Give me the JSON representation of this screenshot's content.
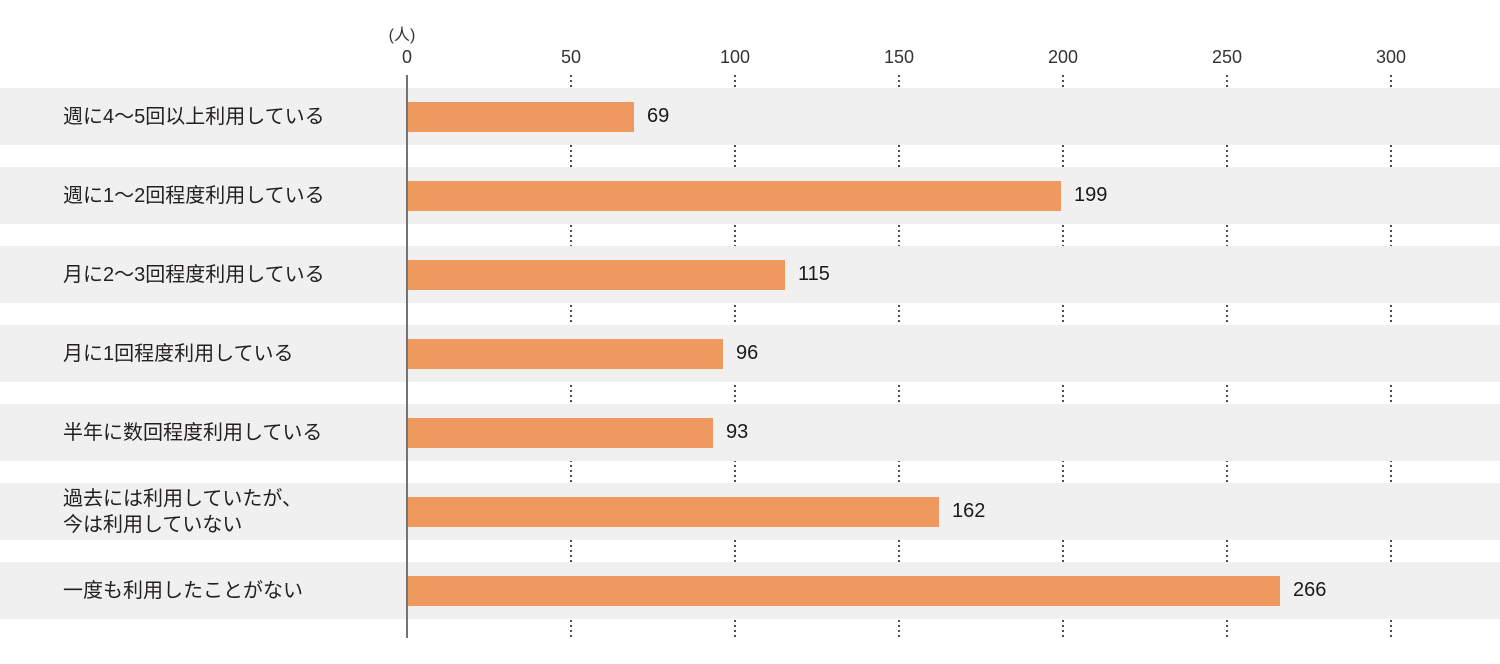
{
  "chart_data": {
    "type": "bar",
    "orientation": "horizontal",
    "title": "",
    "unit_label": "(人)",
    "xlabel": "",
    "ylabel": "",
    "x_ticks": [
      0,
      50,
      100,
      150,
      200,
      250,
      300
    ],
    "xlim": [
      0,
      333
    ],
    "grid": "dotted-vertical-in-row-gaps",
    "legend": "none",
    "categories": [
      "週に4〜5回以上利用している",
      "週に1〜2回程度利用している",
      "月に2〜3回程度利用している",
      "月に1回程度利用している",
      "半年に数回程度利用している",
      "過去には利用していたが、\n今は利用していない",
      "一度も利用したことがない"
    ],
    "values": [
      69,
      199,
      115,
      96,
      93,
      162,
      266
    ],
    "colors": {
      "bar": "#f0995e",
      "row_band": "#f0f0f0",
      "axis_line": "#737373",
      "grid_dot": "#4d4d4d",
      "text": "#231f20"
    }
  }
}
